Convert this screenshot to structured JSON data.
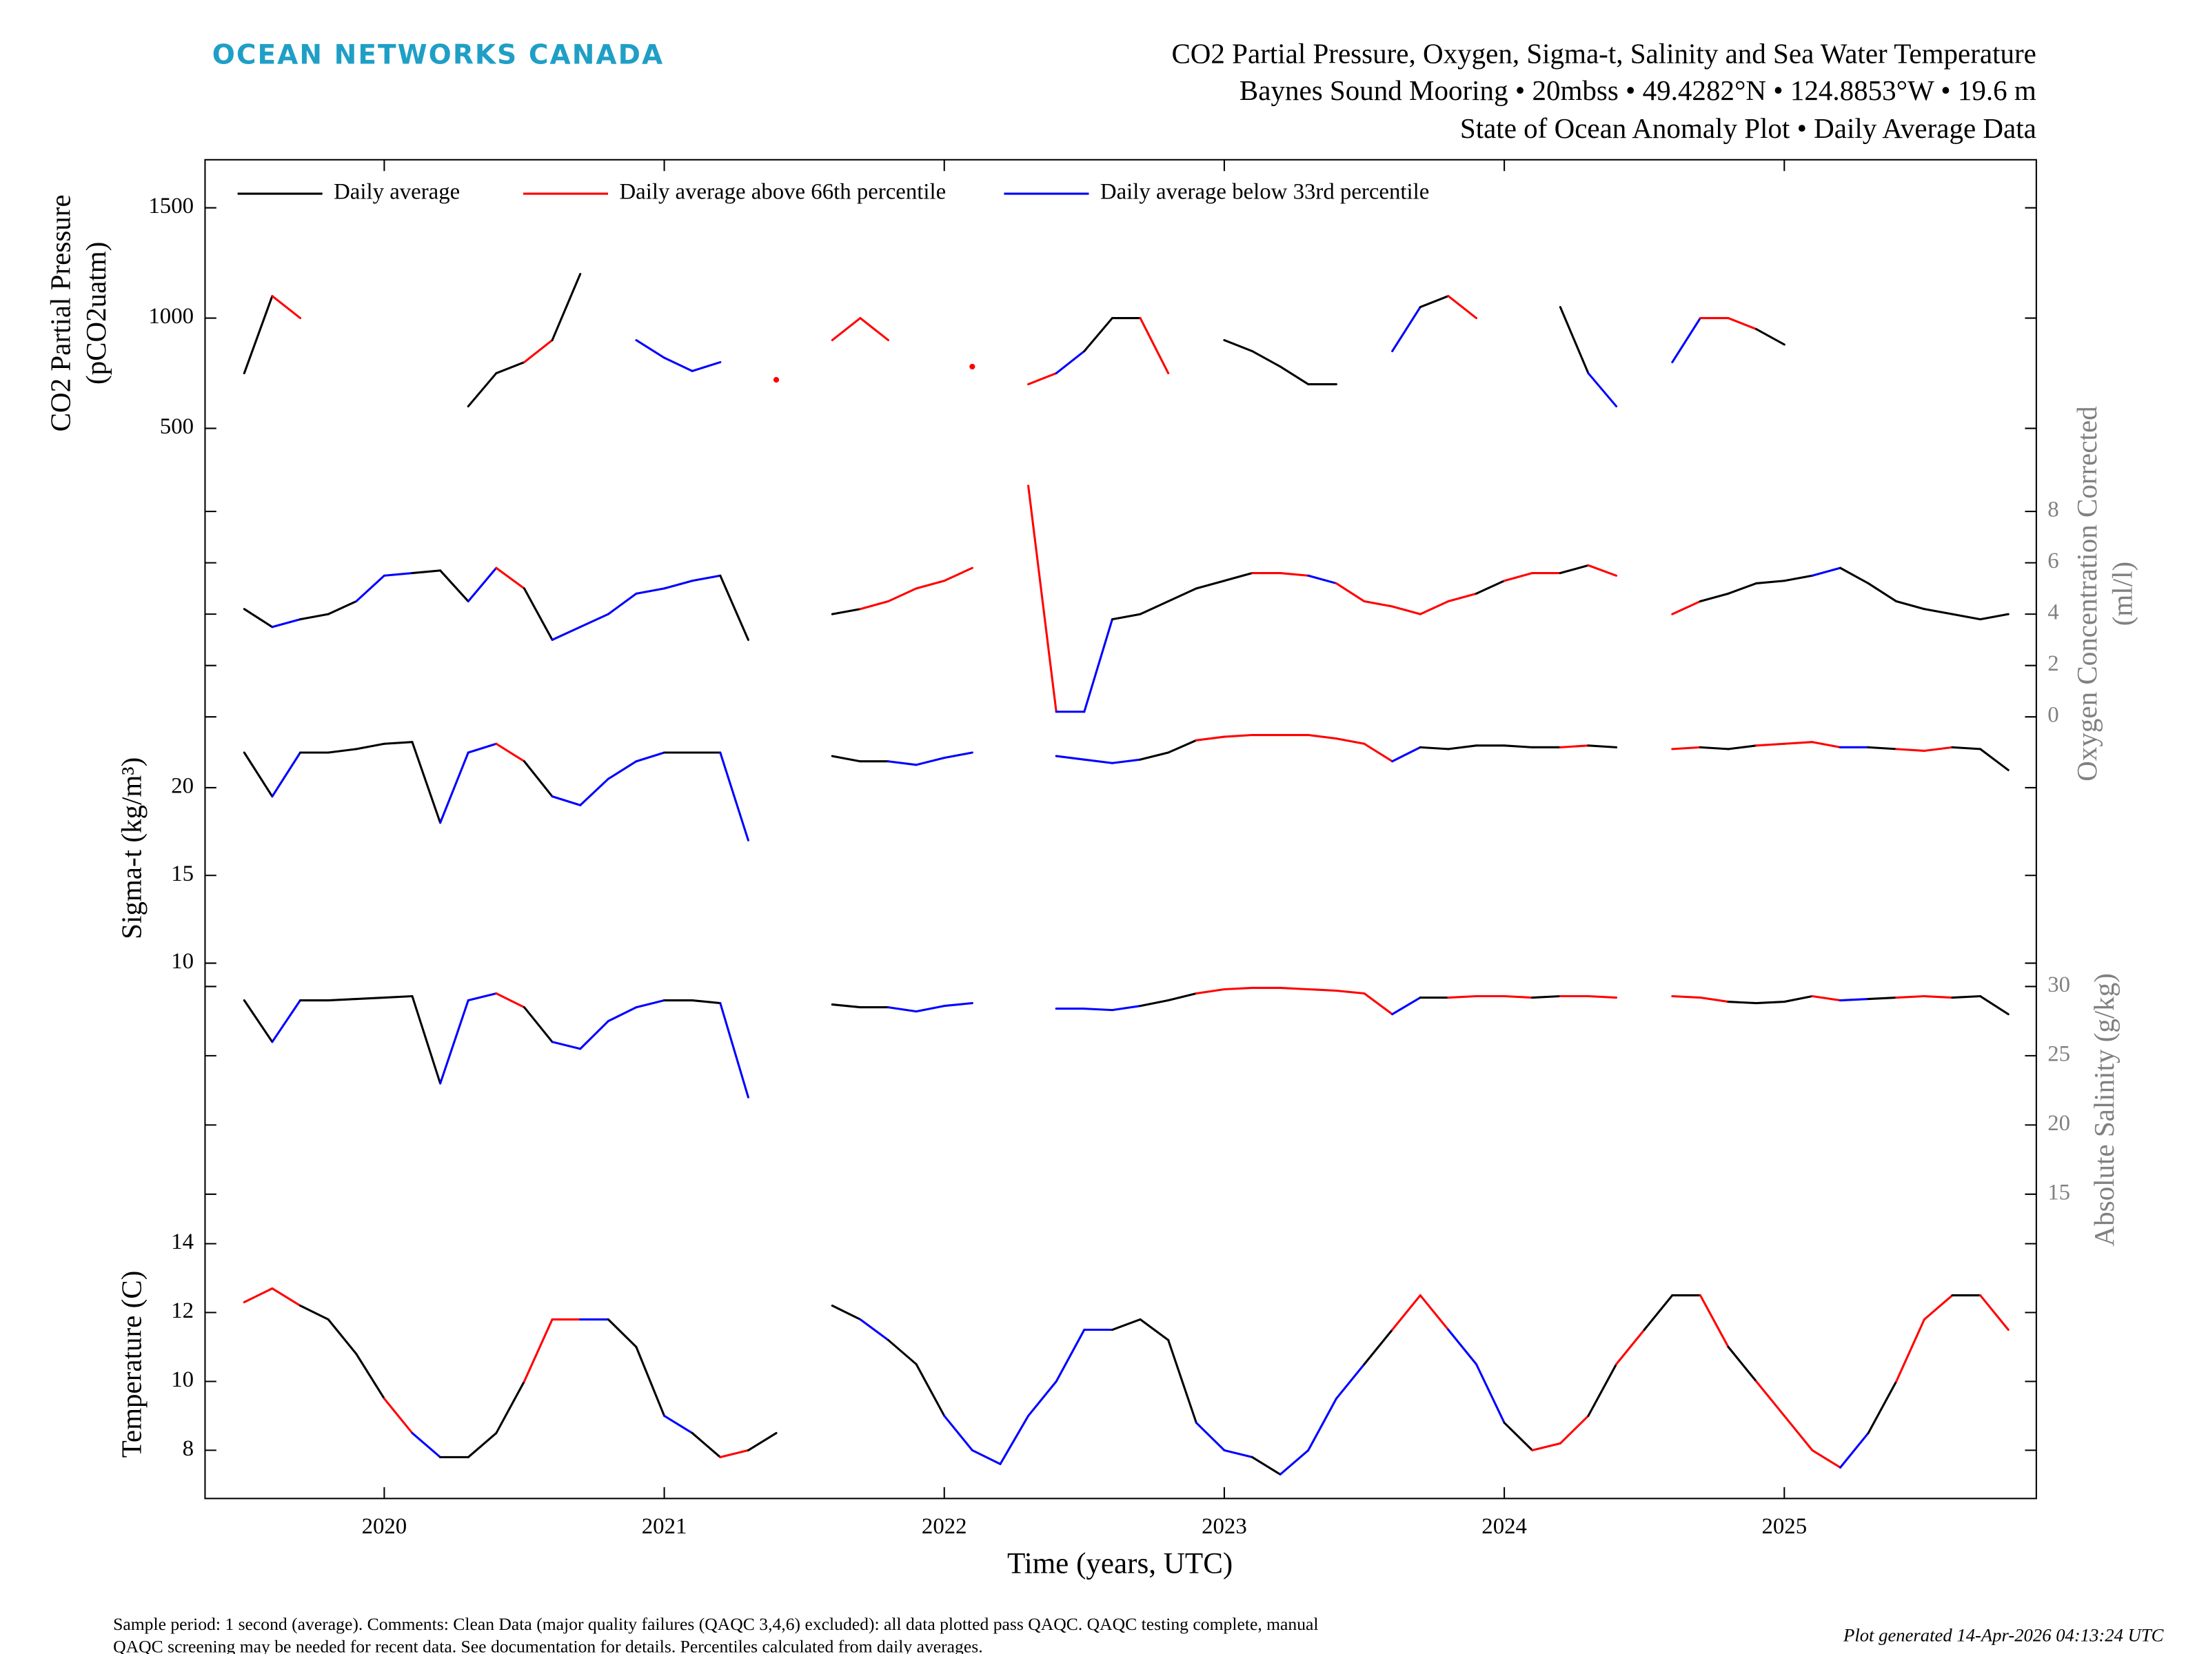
{
  "header": {
    "logo": "OCEAN NETWORKS CANADA",
    "title_lines": [
      "CO2 Partial Pressure, Oxygen, Sigma-t, Salinity and Sea Water Temperature",
      "Baynes Sound Mooring • 20mbss • 49.4282°N • 124.8853°W • 19.6 m",
      "State of Ocean Anomaly Plot • Daily Average Data"
    ]
  },
  "chart_data": {
    "type": "line",
    "x": [
      2019.5,
      2019.6,
      2019.7,
      2019.8,
      2019.9,
      2020.0,
      2020.1,
      2020.2,
      2020.3,
      2020.4,
      2020.5,
      2020.6,
      2020.7,
      2020.8,
      2020.9,
      2021.0,
      2021.1,
      2021.2,
      2021.3,
      2021.4,
      2021.5,
      2021.6,
      2021.7,
      2021.8,
      2021.9,
      2022.0,
      2022.1,
      2022.2,
      2022.3,
      2022.4,
      2022.5,
      2022.6,
      2022.7,
      2022.8,
      2022.9,
      2023.0,
      2023.1,
      2023.2,
      2023.3,
      2023.4,
      2023.5,
      2023.6,
      2023.7,
      2023.8,
      2023.9,
      2024.0,
      2024.1,
      2024.2,
      2024.3,
      2024.4,
      2024.5,
      2024.6,
      2024.7,
      2024.8,
      2024.9,
      2025.0,
      2025.1,
      2025.2,
      2025.3,
      2025.4,
      2025.5,
      2025.6,
      2025.7,
      2025.8
    ],
    "xlim": [
      2019.36,
      2025.9
    ],
    "xticks": [
      2020,
      2021,
      2022,
      2023,
      2024,
      2025
    ],
    "xlabel": "Time (years, UTC)",
    "legend": [
      {
        "name": "Daily average",
        "color": "#000"
      },
      {
        "name": "Daily average above 66th percentile",
        "color": "#f00"
      },
      {
        "name": "Daily average below 33rd percentile",
        "color": "#00f"
      }
    ],
    "panels": [
      {
        "ylabel": [
          "CO2 Partial Pressure",
          "(pCO2uatm)"
        ],
        "side": "left",
        "label_color": "#000",
        "ylim": [
          327,
          1718
        ],
        "yticks": [
          500,
          1000,
          1500
        ],
        "values": [
          750,
          1100,
          1000,
          null,
          null,
          null,
          null,
          null,
          600,
          750,
          800,
          900,
          1200,
          null,
          900,
          820,
          760,
          800,
          null,
          720,
          null,
          900,
          1000,
          900,
          null,
          null,
          780,
          null,
          700,
          750,
          850,
          1000,
          1000,
          750,
          null,
          900,
          850,
          780,
          700,
          700,
          null,
          850,
          1050,
          1100,
          1000,
          null,
          null,
          1050,
          750,
          600,
          null,
          800,
          1000,
          1000,
          950,
          880,
          null,
          null,
          null,
          null,
          null,
          null,
          null,
          null
        ],
        "colors": [
          "#000",
          "#f00",
          "#000",
          null,
          null,
          null,
          null,
          null,
          "#000",
          "#000",
          "#f00",
          "#000",
          "#000",
          null,
          "#00f",
          "#00f",
          "#00f",
          "#000",
          null,
          "#f00",
          null,
          "#f00",
          "#f00",
          "#000",
          null,
          null,
          "#f00",
          null,
          "#f00",
          "#00f",
          "#000",
          "#000",
          "#f00",
          "#00f",
          null,
          "#000",
          "#000",
          "#000",
          "#000",
          "#00f",
          null,
          "#00f",
          "#000",
          "#f00",
          "#f00",
          null,
          null,
          "#000",
          "#00f",
          "#00f",
          null,
          "#00f",
          "#f00",
          "#f00",
          "#000",
          "#000",
          null,
          null,
          null,
          null,
          null,
          null,
          null,
          null
        ]
      },
      {
        "ylabel": [
          "Oxygen Concentration Corrected",
          "(ml/l)"
        ],
        "side": "right",
        "label_color": "#808080",
        "ylim": [
          -0.16,
          9.75
        ],
        "yticks": [
          0,
          2,
          4,
          6,
          8
        ],
        "values": [
          4.2,
          3.5,
          3.8,
          4.0,
          4.5,
          5.5,
          5.6,
          5.7,
          4.5,
          5.8,
          5.0,
          3.0,
          3.5,
          4.0,
          4.8,
          5.0,
          5.3,
          5.5,
          3.0,
          null,
          null,
          4.0,
          4.2,
          4.5,
          5.0,
          5.3,
          5.8,
          null,
          9.0,
          0.2,
          0.2,
          3.8,
          4.0,
          4.5,
          5.0,
          5.3,
          5.6,
          5.6,
          5.5,
          5.2,
          4.5,
          4.3,
          4.0,
          4.5,
          4.8,
          5.3,
          5.6,
          5.6,
          5.9,
          5.5,
          null,
          4.0,
          4.5,
          4.8,
          5.2,
          5.3,
          5.5,
          5.8,
          5.2,
          4.5,
          4.2,
          4.0,
          3.8,
          4.0
        ],
        "colors": [
          "#000",
          "#00f",
          "#000",
          "#000",
          "#00f",
          "#00f",
          "#000",
          "#000",
          "#00f",
          "#f00",
          "#000",
          "#00f",
          "#00f",
          "#00f",
          "#00f",
          "#00f",
          "#00f",
          "#000",
          "#00f",
          null,
          null,
          "#000",
          "#f00",
          "#f00",
          "#f00",
          "#f00",
          "#f00",
          null,
          "#f00",
          "#00f",
          "#00f",
          "#000",
          "#000",
          "#000",
          "#000",
          "#000",
          "#f00",
          "#f00",
          "#00f",
          "#f00",
          "#f00",
          "#f00",
          "#f00",
          "#f00",
          "#000",
          "#f00",
          "#f00",
          "#000",
          "#f00",
          "#f00",
          null,
          "#f00",
          "#000",
          "#000",
          "#000",
          "#000",
          "#00f",
          "#000",
          "#000",
          "#000",
          "#000",
          "#000",
          "#000",
          "#00f"
        ]
      },
      {
        "ylabel": [
          "Sigma-t (kg/m³)"
        ],
        "side": "left",
        "label_color": "#000",
        "ylim": [
          9.3,
          23.8
        ],
        "yticks": [
          10,
          15,
          20
        ],
        "values": [
          22,
          19.5,
          22,
          22,
          22.2,
          22.5,
          22.6,
          18,
          22,
          22.5,
          21.5,
          19.5,
          19,
          20.5,
          21.5,
          22,
          22,
          22,
          17,
          null,
          null,
          21.8,
          21.5,
          21.5,
          21.3,
          21.7,
          22,
          null,
          null,
          21.8,
          21.6,
          21.4,
          21.6,
          22,
          22.7,
          22.9,
          23,
          23,
          23,
          22.8,
          22.5,
          21.5,
          22.3,
          22.2,
          22.4,
          22.4,
          22.3,
          22.3,
          22.4,
          22.3,
          null,
          22.2,
          22.3,
          22.2,
          22.4,
          22.5,
          22.6,
          22.3,
          22.3,
          22.2,
          22.1,
          22.3,
          22.2,
          21
        ],
        "colors": [
          "#000",
          "#00f",
          "#000",
          "#000",
          "#000",
          "#000",
          "#000",
          "#00f",
          "#00f",
          "#f00",
          "#000",
          "#00f",
          "#00f",
          "#00f",
          "#00f",
          "#000",
          "#000",
          "#00f",
          "#00f",
          null,
          null,
          "#000",
          "#000",
          "#00f",
          "#00f",
          "#00f",
          "#000",
          null,
          null,
          "#00f",
          "#00f",
          "#00f",
          "#000",
          "#000",
          "#f00",
          "#f00",
          "#f00",
          "#f00",
          "#f00",
          "#f00",
          "#f00",
          "#00f",
          "#000",
          "#000",
          "#000",
          "#000",
          "#000",
          "#f00",
          "#000",
          "#00f",
          null,
          "#f00",
          "#000",
          "#000",
          "#f00",
          "#f00",
          "#f00",
          "#00f",
          "#000",
          "#f00",
          "#f00",
          "#000",
          "#000",
          "#00f"
        ]
      },
      {
        "ylabel": [
          "Absolute Salinity (g/kg)"
        ],
        "side": "right",
        "label_color": "#808080",
        "ylim": [
          11.4,
          30.8
        ],
        "yticks": [
          15,
          20,
          25,
          30
        ],
        "values": [
          29,
          26,
          29,
          29,
          29.1,
          29.2,
          29.3,
          23,
          29,
          29.5,
          28.5,
          26,
          25.5,
          27.5,
          28.5,
          29,
          29,
          28.8,
          22,
          null,
          null,
          28.7,
          28.5,
          28.5,
          28.2,
          28.6,
          28.8,
          null,
          null,
          28.4,
          28.4,
          28.3,
          28.6,
          29,
          29.5,
          29.8,
          29.9,
          29.9,
          29.8,
          29.7,
          29.5,
          28,
          29.2,
          29.2,
          29.3,
          29.3,
          29.2,
          29.3,
          29.3,
          29.2,
          null,
          29.3,
          29.2,
          28.9,
          28.8,
          28.9,
          29.3,
          29.0,
          29.1,
          29.2,
          29.3,
          29.2,
          29.3,
          28
        ],
        "colors": [
          "#000",
          "#00f",
          "#000",
          "#000",
          "#000",
          "#000",
          "#000",
          "#00f",
          "#00f",
          "#f00",
          "#000",
          "#00f",
          "#00f",
          "#00f",
          "#00f",
          "#000",
          "#000",
          "#00f",
          "#00f",
          null,
          null,
          "#000",
          "#000",
          "#00f",
          "#00f",
          "#00f",
          "#00f",
          null,
          null,
          "#00f",
          "#00f",
          "#00f",
          "#000",
          "#000",
          "#f00",
          "#f00",
          "#f00",
          "#f00",
          "#f00",
          "#f00",
          "#f00",
          "#00f",
          "#000",
          "#f00",
          "#f00",
          "#f00",
          "#000",
          "#f00",
          "#f00",
          "#00f",
          null,
          "#f00",
          "#f00",
          "#000",
          "#000",
          "#000",
          "#f00",
          "#00f",
          "#000",
          "#f00",
          "#f00",
          "#000",
          "#000",
          "#00f"
        ]
      },
      {
        "ylabel": [
          "Temperature (C)"
        ],
        "side": "left",
        "label_color": "#000",
        "ylim": [
          6.6,
          14.4
        ],
        "yticks": [
          8,
          10,
          12,
          14
        ],
        "values": [
          12.3,
          12.7,
          12.2,
          11.8,
          10.8,
          9.5,
          8.5,
          7.8,
          7.8,
          8.5,
          10,
          11.8,
          11.8,
          11.8,
          11,
          9,
          8.5,
          7.8,
          8,
          8.5,
          null,
          12.2,
          11.8,
          11.2,
          10.5,
          9,
          8,
          7.6,
          9,
          10,
          11.5,
          11.5,
          11.8,
          11.2,
          8.8,
          8,
          7.8,
          7.3,
          8,
          9.5,
          10.5,
          11.5,
          12.5,
          11.5,
          10.5,
          8.8,
          8,
          8.2,
          9,
          10.5,
          11.5,
          12.5,
          12.5,
          11,
          10,
          9,
          8,
          7.5,
          8.5,
          10,
          11.8,
          12.5,
          12.5,
          11.5
        ],
        "colors": [
          "#f00",
          "#f00",
          "#000",
          "#000",
          "#000",
          "#f00",
          "#00f",
          "#000",
          "#000",
          "#000",
          "#f00",
          "#f00",
          "#00f",
          "#000",
          "#000",
          "#00f",
          "#000",
          "#f00",
          "#000",
          "#00f",
          null,
          "#000",
          "#00f",
          "#000",
          "#000",
          "#00f",
          "#00f",
          "#00f",
          "#00f",
          "#00f",
          "#00f",
          "#000",
          "#000",
          "#000",
          "#00f",
          "#00f",
          "#000",
          "#00f",
          "#00f",
          "#00f",
          "#000",
          "#f00",
          "#f00",
          "#00f",
          "#00f",
          "#000",
          "#f00",
          "#f00",
          "#000",
          "#f00",
          "#000",
          "#000",
          "#f00",
          "#000",
          "#f00",
          "#f00",
          "#f00",
          "#00f",
          "#000",
          "#f00",
          "#f00",
          "#000",
          "#f00",
          "#f00"
        ]
      }
    ]
  },
  "footer": {
    "notes": [
      "Sample period: 1 second (average). Comments: Clean Data (major quality failures (QAQC 3,4,6) excluded): all data plotted pass QAQC. QAQC testing complete, manual",
      "QAQC screening may be needed for recent data. See documentation for details. Percentiles calculated from daily averages."
    ],
    "generated": "Plot generated 14-Apr-2026 04:13:24 UTC"
  }
}
